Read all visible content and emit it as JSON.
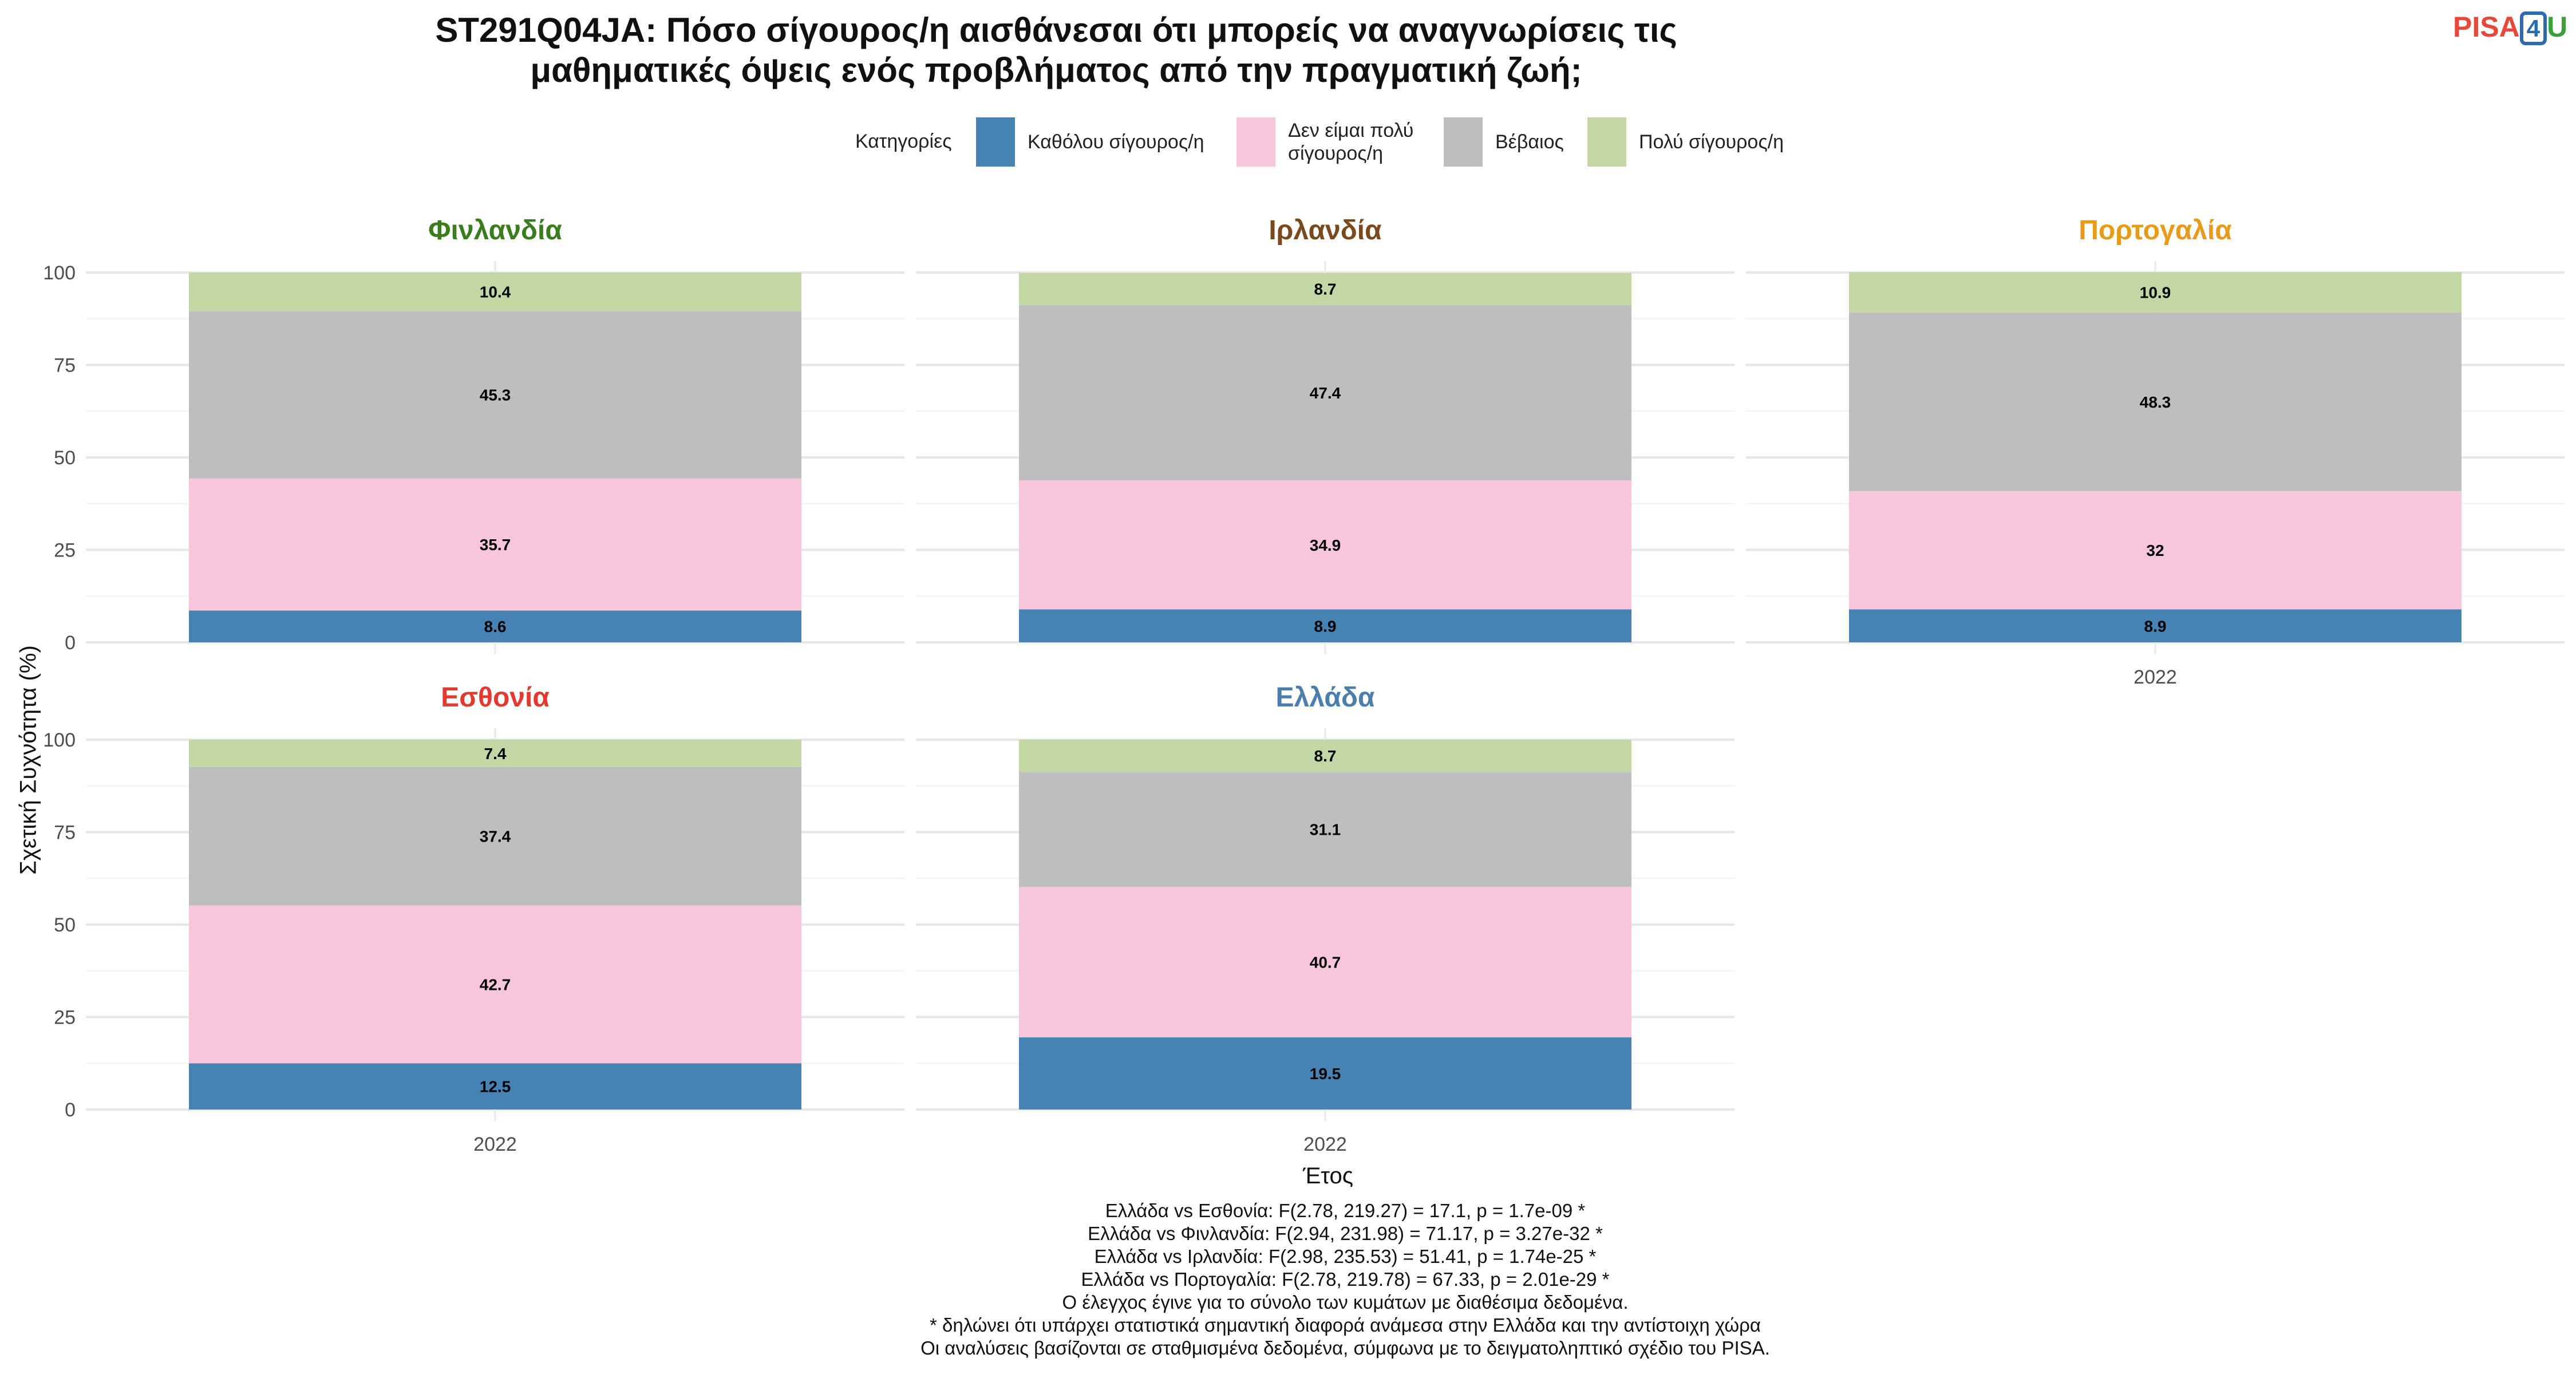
{
  "title_line1": "ST291Q04JA: Πόσο σίγουρος/η αισθάνεσαι ότι μπορείς να αναγνωρίσεις τις",
  "title_line2": "μαθηματικές όψεις ενός προβλήματος από την πραγματική ζωή;",
  "logo": {
    "part1": "PISA",
    "part2": "4",
    "part3": "U"
  },
  "legend": {
    "title": "Κατηγορίες",
    "items": [
      {
        "label_line1": "Καθόλου σίγουρος/η",
        "label_line2": "",
        "color": "#4682b4"
      },
      {
        "label_line1": "Δεν είμαι πολύ",
        "label_line2": "σίγουρος/η",
        "color": "#f7c6dc"
      },
      {
        "label_line1": "Βέβαιος",
        "label_line2": "",
        "color": "#bebebe"
      },
      {
        "label_line1": "Πολύ σίγουρος/η",
        "label_line2": "",
        "color": "#c3d7a4"
      }
    ]
  },
  "chart_data": {
    "type": "bar",
    "stacked": true,
    "ylabel": "Σχετική Συχνότητα (%)",
    "xlabel": "Έτος",
    "ylim": [
      0,
      100
    ],
    "y_ticks": [
      "0",
      "25",
      "50",
      "75",
      "100"
    ],
    "grid": true,
    "legend_position": "top",
    "series_names": [
      "Καθόλου σίγουρος/η",
      "Δεν είμαι πολύ σίγουρος/η",
      "Βέβαιος",
      "Πολύ σίγουρος/η"
    ],
    "colors": [
      "#4682b4",
      "#f7c6dc",
      "#bebebe",
      "#c3d7a4"
    ],
    "panels": [
      {
        "name": "Φινλανδία",
        "title_color": "#3a7d1e",
        "categories": [
          "2022"
        ],
        "values": [
          8.6,
          35.7,
          45.3,
          10.4
        ],
        "labels": [
          "8.6",
          "35.7",
          "45.3",
          "10.4"
        ],
        "show_x_tick": false
      },
      {
        "name": "Ιρλανδία",
        "title_color": "#7a4a1e",
        "categories": [
          "2022"
        ],
        "values": [
          8.9,
          34.9,
          47.4,
          8.7
        ],
        "labels": [
          "8.9",
          "34.9",
          "47.4",
          "8.7"
        ],
        "show_x_tick": false
      },
      {
        "name": "Πορτογαλία",
        "title_color": "#e89a1a",
        "categories": [
          "2022"
        ],
        "values": [
          8.9,
          32,
          48.3,
          10.9
        ],
        "labels": [
          "8.9",
          "32",
          "48.3",
          "10.9"
        ],
        "show_x_tick": true
      },
      {
        "name": "Εσθονία",
        "title_color": "#e23a2e",
        "categories": [
          "2022"
        ],
        "values": [
          12.5,
          42.7,
          37.4,
          7.4
        ],
        "labels": [
          "12.5",
          "42.7",
          "37.4",
          "7.4"
        ],
        "show_x_tick": true
      },
      {
        "name": "Ελλάδα",
        "title_color": "#4a7fad",
        "categories": [
          "2022"
        ],
        "values": [
          19.5,
          40.7,
          31.1,
          8.7
        ],
        "labels": [
          "19.5",
          "40.7",
          "31.1",
          "8.7"
        ],
        "show_x_tick": true
      }
    ]
  },
  "notes": [
    "Ελλάδα vs Εσθονία: F(2.78, 219.27) = 17.1, p = 1.7e-09 *",
    "Ελλάδα vs Φινλανδία: F(2.94, 231.98) = 71.17, p = 3.27e-32 *",
    "Ελλάδα vs Ιρλανδία: F(2.98, 235.53) = 51.41, p = 1.74e-25 *",
    "Ελλάδα vs Πορτογαλία: F(2.78, 219.78) = 67.33, p = 2.01e-29 *",
    "Ο έλεγχος έγινε για το σύνολο των κυμάτων με διαθέσιμα δεδομένα.",
    "* δηλώνει ότι υπάρχει στατιστικά σημαντική διαφορά ανάμεσα στην Ελλάδα και την αντίστοιχη χώρα",
    "Οι αναλύσεις βασίζονται σε σταθμισμένα δεδομένα, σύμφωνα με το δειγματοληπτικό σχέδιο του PISA."
  ]
}
